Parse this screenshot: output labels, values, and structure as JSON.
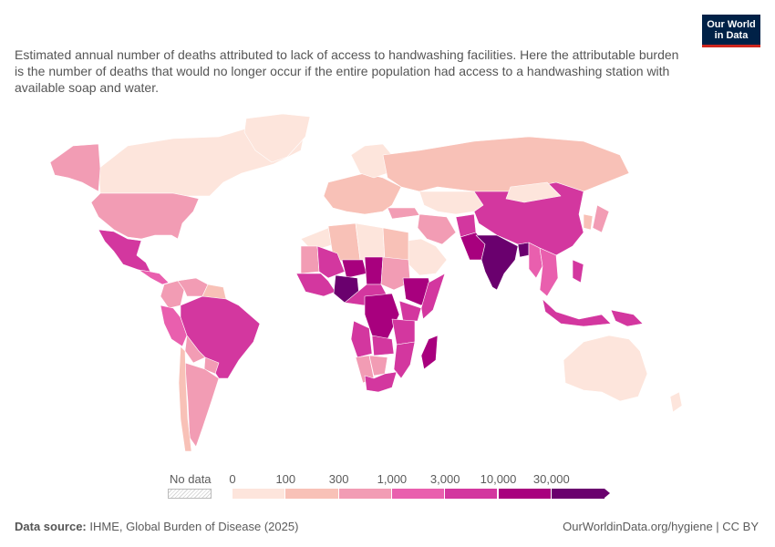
{
  "logo": {
    "line1": "Our World",
    "line2": "in Data"
  },
  "subtitle": "Estimated annual number of deaths attributed to lack of access to handwashing facilities. Here the attributable burden is the number of deaths that would no longer occur if the entire population had access to a handwashing station with available soap and water.",
  "legend": {
    "no_data_label": "No data",
    "ticks": [
      "0",
      "100",
      "300",
      "1,000",
      "3,000",
      "10,000",
      "30,000"
    ],
    "colors": [
      "#fde5dc",
      "#f8c1b7",
      "#f29cb4",
      "#e95fae",
      "#d3379f",
      "#a8007e",
      "#6a006e"
    ]
  },
  "footer": {
    "source_label": "Data source:",
    "source_text": "IHME, Global Burden of Disease (2025)",
    "link_text": "OurWorldinData.org/hygiene | CC BY"
  },
  "map_data": {
    "regions": [
      {
        "name": "Canada",
        "bucket": 0
      },
      {
        "name": "Alaska",
        "bucket": 2
      },
      {
        "name": "United States",
        "bucket": 2
      },
      {
        "name": "Greenland",
        "bucket": 0
      },
      {
        "name": "Mexico",
        "bucket": 4
      },
      {
        "name": "Central America",
        "bucket": 3
      },
      {
        "name": "Colombia",
        "bucket": 2
      },
      {
        "name": "Venezuela",
        "bucket": 2
      },
      {
        "name": "Guianas",
        "bucket": 1
      },
      {
        "name": "Peru",
        "bucket": 3
      },
      {
        "name": "Brazil",
        "bucket": 4
      },
      {
        "name": "Bolivia",
        "bucket": 2
      },
      {
        "name": "Paraguay",
        "bucket": 2
      },
      {
        "name": "Argentina",
        "bucket": 2
      },
      {
        "name": "Chile",
        "bucket": 1
      },
      {
        "name": "Europe",
        "bucket": 1
      },
      {
        "name": "Scandinavia",
        "bucket": 0
      },
      {
        "name": "Russia",
        "bucket": 1
      },
      {
        "name": "Kazakhstan",
        "bucket": 0
      },
      {
        "name": "Iran",
        "bucket": 2
      },
      {
        "name": "Arabia",
        "bucket": 0
      },
      {
        "name": "Turkey",
        "bucket": 2
      },
      {
        "name": "Afghanistan",
        "bucket": 4
      },
      {
        "name": "Pakistan",
        "bucket": 5
      },
      {
        "name": "India",
        "bucket": 6
      },
      {
        "name": "Bangladesh",
        "bucket": 6
      },
      {
        "name": "Myanmar",
        "bucket": 3
      },
      {
        "name": "China",
        "bucket": 4
      },
      {
        "name": "Mongolia",
        "bucket": 0
      },
      {
        "name": "Southeast Asia",
        "bucket": 3
      },
      {
        "name": "Japan",
        "bucket": 2
      },
      {
        "name": "Korea",
        "bucket": 1
      },
      {
        "name": "Philippines",
        "bucket": 4
      },
      {
        "name": "Indonesia",
        "bucket": 4
      },
      {
        "name": "Papua New Guinea",
        "bucket": 4
      },
      {
        "name": "Australia",
        "bucket": 0
      },
      {
        "name": "New Zealand",
        "bucket": 0
      },
      {
        "name": "North Africa",
        "bucket": 0
      },
      {
        "name": "Algeria",
        "bucket": 1
      },
      {
        "name": "Libya",
        "bucket": 0
      },
      {
        "name": "Egypt",
        "bucket": 1
      },
      {
        "name": "Mauritania",
        "bucket": 2
      },
      {
        "name": "Mali",
        "bucket": 4
      },
      {
        "name": "Niger",
        "bucket": 5
      },
      {
        "name": "Chad",
        "bucket": 5
      },
      {
        "name": "Sudan",
        "bucket": 2
      },
      {
        "name": "West Africa",
        "bucket": 4
      },
      {
        "name": "Nigeria",
        "bucket": 6
      },
      {
        "name": "Ethiopia",
        "bucket": 5
      },
      {
        "name": "Somalia",
        "bucket": 4
      },
      {
        "name": "Central Africa",
        "bucket": 4
      },
      {
        "name": "DR Congo",
        "bucket": 5
      },
      {
        "name": "Kenya",
        "bucket": 4
      },
      {
        "name": "Tanzania",
        "bucket": 4
      },
      {
        "name": "Angola",
        "bucket": 4
      },
      {
        "name": "Zambia",
        "bucket": 4
      },
      {
        "name": "Mozambique",
        "bucket": 4
      },
      {
        "name": "Namibia",
        "bucket": 2
      },
      {
        "name": "Botswana",
        "bucket": 2
      },
      {
        "name": "South Africa",
        "bucket": 4
      },
      {
        "name": "Madagascar",
        "bucket": 5
      }
    ]
  }
}
